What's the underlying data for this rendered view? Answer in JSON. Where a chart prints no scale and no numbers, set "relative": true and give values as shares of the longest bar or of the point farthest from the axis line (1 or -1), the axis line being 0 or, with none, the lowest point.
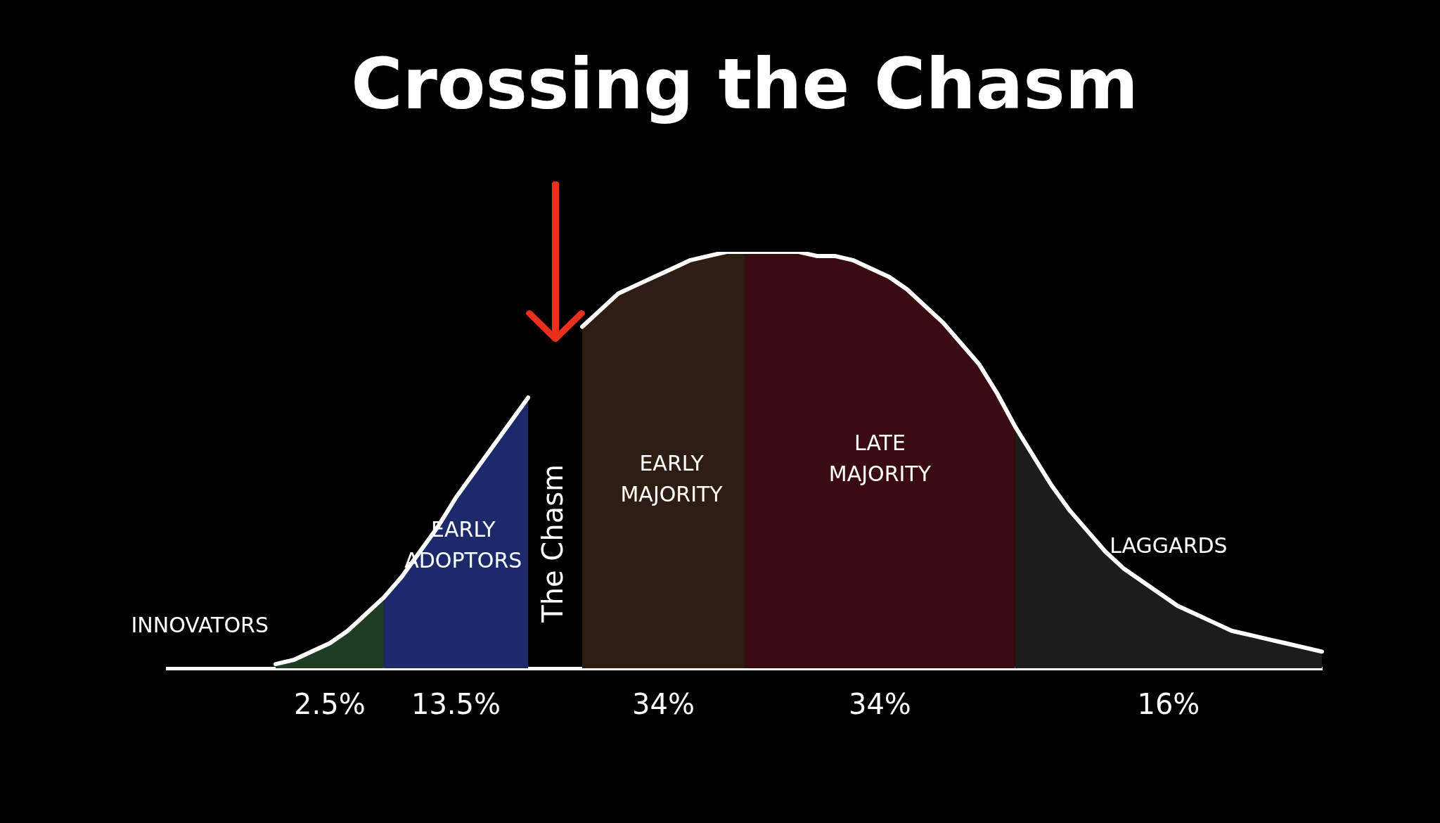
{
  "chart_data": {
    "type": "area",
    "title": "Crossing the Chasm",
    "relative": true,
    "categories": [
      null,
      null,
      null,
      null,
      null,
      null,
      null,
      null,
      null,
      null,
      null,
      null,
      null,
      null,
      null,
      null,
      null,
      null,
      null,
      null,
      null,
      null,
      null,
      null,
      null,
      null,
      null,
      null,
      null,
      null,
      null,
      null,
      null,
      null,
      null,
      null,
      null,
      null,
      null,
      null,
      null,
      null,
      null,
      null,
      null,
      null,
      null,
      null,
      null,
      null,
      null,
      null,
      null,
      null,
      null,
      null,
      null,
      null,
      null,
      null,
      null,
      null,
      null,
      null,
      null
    ],
    "series": [
      {
        "type": "line",
        "color": "#ffffff",
        "values": [
          null,
          null,
          null,
          null,
          null,
          null,
          0.01,
          0.02,
          0.04,
          0.06,
          0.09,
          0.13,
          0.17,
          0.22,
          0.28,
          0.34,
          0.41,
          0.47,
          0.53,
          0.59,
          0.65,
          null,
          null,
          0.82,
          0.86,
          0.9,
          0.92,
          0.94,
          0.96,
          0.98,
          0.99,
          1,
          1,
          1,
          1,
          1,
          0.99,
          0.99,
          0.98,
          0.96,
          0.94,
          0.91,
          0.87,
          0.83,
          0.78,
          0.73,
          0.66,
          0.58,
          0.51,
          0.44,
          0.38,
          0.33,
          0.28,
          0.24,
          0.21,
          0.18,
          0.15,
          0.13,
          0.11,
          0.09,
          0.08,
          0.07,
          0.06,
          0.05,
          0.04
        ]
      },
      {
        "name": "INNOVATORS",
        "color": "#1e3d22",
        "values": [
          null,
          null,
          null,
          null,
          null,
          null,
          0.01,
          0.02,
          0.04,
          0.06,
          0.09,
          0.13,
          0.17,
          null,
          null,
          null,
          null,
          null,
          null,
          null,
          null,
          null,
          null,
          null,
          null,
          null,
          null,
          null,
          null,
          null,
          null,
          null,
          null,
          null,
          null,
          null,
          null,
          null,
          null,
          null,
          null,
          null,
          null,
          null,
          null,
          null,
          null,
          null,
          null,
          null,
          null,
          null,
          null,
          null,
          null,
          null,
          null,
          null,
          null,
          null,
          null,
          null,
          null,
          null,
          null
        ]
      },
      {
        "name": "EARLY ADOPTORS",
        "color": "#1c2a6a",
        "values": [
          null,
          null,
          null,
          null,
          null,
          null,
          null,
          null,
          null,
          null,
          null,
          null,
          0.17,
          0.22,
          0.28,
          0.34,
          0.41,
          0.47,
          0.53,
          0.59,
          0.65,
          null,
          null,
          null,
          null,
          null,
          null,
          null,
          null,
          null,
          null,
          null,
          null,
          null,
          null,
          null,
          null,
          null,
          null,
          null,
          null,
          null,
          null,
          null,
          null,
          null,
          null,
          null,
          null,
          null,
          null,
          null,
          null,
          null,
          null,
          null,
          null,
          null,
          null,
          null,
          null,
          null,
          null,
          null,
          null
        ]
      },
      {
        "name": "EARLY MAJORITY",
        "color": "#2e1d12",
        "values": [
          null,
          null,
          null,
          null,
          null,
          null,
          null,
          null,
          null,
          null,
          null,
          null,
          null,
          null,
          null,
          null,
          null,
          null,
          null,
          null,
          null,
          null,
          null,
          0.82,
          0.86,
          0.9,
          0.92,
          0.94,
          0.96,
          0.98,
          0.99,
          1,
          1,
          null,
          null,
          null,
          null,
          null,
          null,
          null,
          null,
          null,
          null,
          null,
          null,
          null,
          null,
          null,
          null,
          null,
          null,
          null,
          null,
          null,
          null,
          null,
          null,
          null,
          null,
          null,
          null,
          null,
          null,
          null,
          null
        ]
      },
      {
        "name": "LATE MAJORITY",
        "color": "#3a0c12",
        "values": [
          null,
          null,
          null,
          null,
          null,
          null,
          null,
          null,
          null,
          null,
          null,
          null,
          null,
          null,
          null,
          null,
          null,
          null,
          null,
          null,
          null,
          null,
          null,
          null,
          null,
          null,
          null,
          null,
          null,
          null,
          null,
          null,
          1,
          1,
          1,
          1,
          0.99,
          0.99,
          0.98,
          0.96,
          0.94,
          0.91,
          0.87,
          0.83,
          0.78,
          0.73,
          0.66,
          0.58,
          null,
          null,
          null,
          null,
          null,
          null,
          null,
          null,
          null,
          null,
          null,
          null,
          null,
          null,
          null,
          null,
          null
        ]
      },
      {
        "name": "LAGGARDS",
        "color": "#1c1c1c",
        "values": [
          null,
          null,
          null,
          null,
          null,
          null,
          null,
          null,
          null,
          null,
          null,
          null,
          null,
          null,
          null,
          null,
          null,
          null,
          null,
          null,
          null,
          null,
          null,
          null,
          null,
          null,
          null,
          null,
          null,
          null,
          null,
          null,
          null,
          null,
          null,
          null,
          null,
          null,
          null,
          null,
          null,
          null,
          null,
          null,
          null,
          null,
          null,
          0.58,
          0.51,
          0.44,
          0.38,
          0.33,
          0.28,
          0.24,
          0.21,
          0.18,
          0.15,
          0.13,
          0.11,
          0.09,
          0.08,
          0.07,
          0.06,
          0.05,
          0.04
        ]
      }
    ],
    "annotations": [
      "The Chasm",
      "2.5%",
      "13.5%",
      "34%",
      "34%",
      "16%"
    ]
  }
}
